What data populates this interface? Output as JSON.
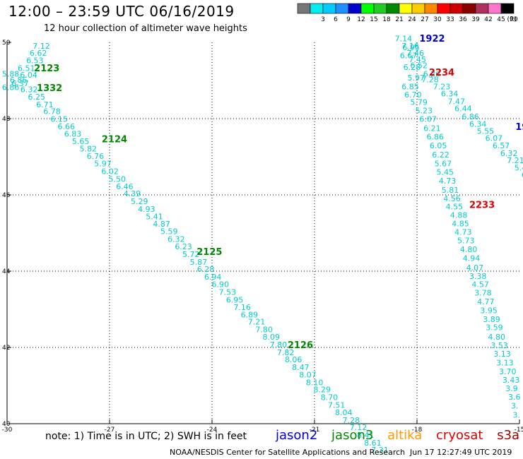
{
  "title": "12:00  – 23:59 UTC 06/16/2019",
  "subtitle": "12 hour collection of altimeter wave heights",
  "colorbar": {
    "unit": "(ft)",
    "bins": [
      {
        "label": "",
        "color": "#777777"
      },
      {
        "label": "3",
        "color": "#00eeee"
      },
      {
        "label": "6",
        "color": "#00ccff"
      },
      {
        "label": "9",
        "color": "#1e90ff"
      },
      {
        "label": "12",
        "color": "#0000cc"
      },
      {
        "label": "15",
        "color": "#00ff00"
      },
      {
        "label": "18",
        "color": "#22cc22"
      },
      {
        "label": "21",
        "color": "#008800"
      },
      {
        "label": "24",
        "color": "#ffff00"
      },
      {
        "label": "27",
        "color": "#ffcc00"
      },
      {
        "label": "30",
        "color": "#ff8800"
      },
      {
        "label": "33",
        "color": "#ff0000"
      },
      {
        "label": "36",
        "color": "#cc0000"
      },
      {
        "label": "39",
        "color": "#880000"
      },
      {
        "label": "42",
        "color": "#b03060"
      },
      {
        "label": "45",
        "color": "#ff77cc"
      },
      {
        "label": "70",
        "color": "#000000"
      }
    ]
  },
  "chart_data": {
    "type": "scatter",
    "xlim": [
      -30,
      -15
    ],
    "ylim": [
      40,
      50
    ],
    "x_ticks": [
      "-30",
      "-27",
      "-24",
      "-21",
      "-18",
      "-15"
    ],
    "y_ticks": [
      "40",
      "42",
      "44",
      "46",
      "48",
      "50"
    ],
    "grid": true,
    "value_color": "#00cccc",
    "tracks": [
      {
        "points": [
          {
            "lon": -29.25,
            "lat": 49.83,
            "v": "7.12"
          },
          {
            "lon": -29.34,
            "lat": 49.65,
            "v": "6.62"
          },
          {
            "lon": -29.44,
            "lat": 49.45,
            "v": "6.53"
          },
          {
            "lon": -29.69,
            "lat": 49.25,
            "v": "6.51"
          },
          {
            "lon": -30.15,
            "lat": 49.1,
            "v": "5.88"
          },
          {
            "lon": -29.62,
            "lat": 49.07,
            "v": "6.04"
          },
          {
            "lon": -29.92,
            "lat": 48.94,
            "v": "6.86"
          },
          {
            "lon": -29.87,
            "lat": 48.85,
            "v": "6.37"
          },
          {
            "lon": -30.15,
            "lat": 48.75,
            "v": "6.86"
          },
          {
            "lon": -29.61,
            "lat": 48.69,
            "v": "6.32"
          },
          {
            "lon": -29.39,
            "lat": 48.5,
            "v": "6.25"
          },
          {
            "lon": -29.15,
            "lat": 48.3,
            "v": "6.71"
          },
          {
            "lon": -28.94,
            "lat": 48.12,
            "v": "6.78"
          },
          {
            "lon": -28.73,
            "lat": 47.92,
            "v": "6.15"
          },
          {
            "lon": -28.52,
            "lat": 47.72,
            "v": "6.66"
          },
          {
            "lon": -28.33,
            "lat": 47.53,
            "v": "6.83"
          },
          {
            "lon": -28.1,
            "lat": 47.33,
            "v": "5.65"
          },
          {
            "lon": -27.88,
            "lat": 47.14,
            "v": "5.82"
          },
          {
            "lon": -27.67,
            "lat": 46.94,
            "v": "6.76"
          },
          {
            "lon": -27.45,
            "lat": 46.75,
            "v": "5.97"
          },
          {
            "lon": -27.24,
            "lat": 46.55,
            "v": "6.02"
          },
          {
            "lon": -27.03,
            "lat": 46.34,
            "v": "5.50"
          },
          {
            "lon": -26.81,
            "lat": 46.15,
            "v": "6.46"
          },
          {
            "lon": -26.59,
            "lat": 45.96,
            "v": "4.39"
          },
          {
            "lon": -26.38,
            "lat": 45.76,
            "v": "5.29"
          },
          {
            "lon": -26.17,
            "lat": 45.56,
            "v": "4.93"
          },
          {
            "lon": -25.94,
            "lat": 45.36,
            "v": "5.41"
          },
          {
            "lon": -25.73,
            "lat": 45.17,
            "v": "4.87"
          },
          {
            "lon": -25.51,
            "lat": 44.97,
            "v": "5.59"
          },
          {
            "lon": -25.3,
            "lat": 44.77,
            "v": "6.32"
          },
          {
            "lon": -25.09,
            "lat": 44.57,
            "v": "6.23"
          },
          {
            "lon": -24.87,
            "lat": 44.37,
            "v": "5.72"
          },
          {
            "lon": -24.65,
            "lat": 44.17,
            "v": "5.87"
          },
          {
            "lon": -24.44,
            "lat": 43.98,
            "v": "6.28"
          },
          {
            "lon": -24.23,
            "lat": 43.78,
            "v": "6.94"
          },
          {
            "lon": -24.01,
            "lat": 43.58,
            "v": "6.90"
          },
          {
            "lon": -23.8,
            "lat": 43.38,
            "v": "7.53"
          },
          {
            "lon": -23.59,
            "lat": 43.18,
            "v": "6.95"
          },
          {
            "lon": -23.37,
            "lat": 42.98,
            "v": "7.16"
          },
          {
            "lon": -23.16,
            "lat": 42.79,
            "v": "6.89"
          },
          {
            "lon": -22.95,
            "lat": 42.6,
            "v": "7.21"
          },
          {
            "lon": -22.73,
            "lat": 42.4,
            "v": "7.80"
          },
          {
            "lon": -22.52,
            "lat": 42.2,
            "v": "8.09"
          },
          {
            "lon": -22.31,
            "lat": 42.0,
            "v": "7.80"
          },
          {
            "lon": -22.1,
            "lat": 41.8,
            "v": "7.82"
          },
          {
            "lon": -21.87,
            "lat": 41.61,
            "v": "8.06"
          },
          {
            "lon": -21.66,
            "lat": 41.41,
            "v": "8.47"
          },
          {
            "lon": -21.45,
            "lat": 41.21,
            "v": "8.07"
          },
          {
            "lon": -21.25,
            "lat": 41.01,
            "v": "8.10"
          },
          {
            "lon": -21.03,
            "lat": 40.82,
            "v": "8.29"
          },
          {
            "lon": -20.82,
            "lat": 40.62,
            "v": "8.70"
          },
          {
            "lon": -20.61,
            "lat": 40.42,
            "v": "7.51"
          },
          {
            "lon": -20.4,
            "lat": 40.22,
            "v": "8.04"
          },
          {
            "lon": -20.18,
            "lat": 40.02,
            "v": "7.28"
          },
          {
            "lon": -19.97,
            "lat": 39.83,
            "v": "7.12"
          },
          {
            "lon": -19.76,
            "lat": 39.63,
            "v": "8.41"
          },
          {
            "lon": -19.55,
            "lat": 39.43,
            "v": "8.61"
          },
          {
            "lon": -19.34,
            "lat": 39.24,
            "v": "7.31"
          }
        ],
        "labels": [
          {
            "lon": -29.21,
            "lat": 49.24,
            "text": "2123",
            "sat": "jason3"
          },
          {
            "lon": -29.13,
            "lat": 48.72,
            "text": "1332",
            "sat": "jason3"
          },
          {
            "lon": -27.23,
            "lat": 47.38,
            "text": "2124",
            "sat": "jason3"
          },
          {
            "lon": -24.45,
            "lat": 44.43,
            "text": "2125",
            "sat": "jason3"
          },
          {
            "lon": -21.79,
            "lat": 41.98,
            "text": "2126",
            "sat": "jason3"
          }
        ]
      },
      {
        "points": [
          {
            "lon": -18.65,
            "lat": 50.03,
            "v": "7.14"
          },
          {
            "lon": -18.45,
            "lat": 49.83,
            "v": "7.16"
          },
          {
            "lon": -18.43,
            "lat": 49.8,
            "v": "6.95"
          },
          {
            "lon": -18.3,
            "lat": 49.65,
            "v": "7.46"
          },
          {
            "lon": -18.5,
            "lat": 49.58,
            "v": "6.67"
          },
          {
            "lon": -18.24,
            "lat": 49.48,
            "v": "7.45"
          },
          {
            "lon": -18.2,
            "lat": 49.32,
            "v": "6.52"
          },
          {
            "lon": -18.4,
            "lat": 49.28,
            "v": "6.28"
          },
          {
            "lon": -18.28,
            "lat": 49.0,
            "v": "5.97"
          },
          {
            "lon": -17.82,
            "lat": 49.1,
            "v": "6.26"
          },
          {
            "lon": -17.87,
            "lat": 48.95,
            "v": "7.28"
          },
          {
            "lon": -18.45,
            "lat": 48.77,
            "v": "6.85"
          },
          {
            "lon": -17.53,
            "lat": 48.77,
            "v": "7.23"
          },
          {
            "lon": -18.37,
            "lat": 48.56,
            "v": "6.70"
          },
          {
            "lon": -17.3,
            "lat": 48.58,
            "v": "6.34"
          },
          {
            "lon": -18.2,
            "lat": 48.36,
            "v": "5.79"
          },
          {
            "lon": -17.1,
            "lat": 48.38,
            "v": "7.47"
          },
          {
            "lon": -16.9,
            "lat": 48.19,
            "v": "6.44"
          },
          {
            "lon": -18.05,
            "lat": 48.14,
            "v": "5.23"
          },
          {
            "lon": -16.69,
            "lat": 47.98,
            "v": "6.86"
          },
          {
            "lon": -17.93,
            "lat": 47.92,
            "v": "6.07"
          },
          {
            "lon": -16.47,
            "lat": 47.79,
            "v": "6.34"
          },
          {
            "lon": -16.25,
            "lat": 47.6,
            "v": "5.55"
          },
          {
            "lon": -17.81,
            "lat": 47.68,
            "v": "6.21"
          },
          {
            "lon": -16.0,
            "lat": 47.42,
            "v": "6.07"
          },
          {
            "lon": -17.72,
            "lat": 47.45,
            "v": "6.86"
          },
          {
            "lon": -15.79,
            "lat": 47.22,
            "v": "6.57"
          },
          {
            "lon": -17.63,
            "lat": 47.22,
            "v": "6.05"
          },
          {
            "lon": -15.56,
            "lat": 47.02,
            "v": "6.32"
          },
          {
            "lon": -17.56,
            "lat": 46.98,
            "v": "6.22"
          },
          {
            "lon": -15.37,
            "lat": 46.83,
            "v": "7.21"
          },
          {
            "lon": -17.49,
            "lat": 46.75,
            "v": "5.67"
          },
          {
            "lon": -15.15,
            "lat": 46.64,
            "v": "5.46"
          },
          {
            "lon": -17.43,
            "lat": 46.53,
            "v": "5.45"
          },
          {
            "lon": -14.94,
            "lat": 46.45,
            "v": "6.24"
          },
          {
            "lon": -17.36,
            "lat": 46.3,
            "v": "4.73"
          },
          {
            "lon": -14.72,
            "lat": 46.26,
            "v": "6.69"
          },
          {
            "lon": -14.68,
            "lat": 46.06,
            "v": "6.43"
          },
          {
            "lon": -17.28,
            "lat": 46.06,
            "v": "5.81"
          },
          {
            "lon": -17.23,
            "lat": 45.83,
            "v": "4.56"
          },
          {
            "lon": -17.16,
            "lat": 45.62,
            "v": "4.55"
          },
          {
            "lon": -17.03,
            "lat": 45.4,
            "v": "4.88"
          },
          {
            "lon": -16.98,
            "lat": 45.18,
            "v": "4.85"
          },
          {
            "lon": -16.9,
            "lat": 44.95,
            "v": "4.73"
          },
          {
            "lon": -16.82,
            "lat": 44.73,
            "v": "5.73"
          },
          {
            "lon": -16.74,
            "lat": 44.5,
            "v": "4.80"
          },
          {
            "lon": -16.66,
            "lat": 44.27,
            "v": "4.94"
          },
          {
            "lon": -16.56,
            "lat": 44.02,
            "v": "4.07"
          },
          {
            "lon": -16.47,
            "lat": 43.8,
            "v": "3.38"
          },
          {
            "lon": -16.4,
            "lat": 43.58,
            "v": "4.57"
          },
          {
            "lon": -16.32,
            "lat": 43.36,
            "v": "3.78"
          },
          {
            "lon": -16.24,
            "lat": 43.13,
            "v": "4.77"
          },
          {
            "lon": -16.15,
            "lat": 42.9,
            "v": "3.95"
          },
          {
            "lon": -16.07,
            "lat": 42.67,
            "v": "3.89"
          },
          {
            "lon": -15.99,
            "lat": 42.45,
            "v": "3.59"
          },
          {
            "lon": -15.92,
            "lat": 42.2,
            "v": "4.80"
          },
          {
            "lon": -15.84,
            "lat": 41.98,
            "v": "3.53"
          },
          {
            "lon": -15.76,
            "lat": 41.76,
            "v": "3.13"
          },
          {
            "lon": -15.68,
            "lat": 41.53,
            "v": "3.13"
          },
          {
            "lon": -15.6,
            "lat": 41.3,
            "v": "3.70"
          },
          {
            "lon": -15.5,
            "lat": 41.07,
            "v": "3.43"
          },
          {
            "lon": -15.41,
            "lat": 40.85,
            "v": "3.9"
          },
          {
            "lon": -15.33,
            "lat": 40.63,
            "v": "3.6"
          },
          {
            "lon": -15.25,
            "lat": 40.4,
            "v": "3."
          },
          {
            "lon": -15.2,
            "lat": 40.16,
            "v": "3."
          }
        ],
        "labels": [
          {
            "lon": -17.93,
            "lat": 50.02,
            "text": "1922",
            "sat": "jason2"
          },
          {
            "lon": -17.65,
            "lat": 49.13,
            "text": "2234",
            "sat": "cryosat"
          },
          {
            "lon": -15.12,
            "lat": 47.7,
            "text": "1923",
            "sat": "jason2"
          },
          {
            "lon": -16.47,
            "lat": 45.66,
            "text": "2233",
            "sat": "cryosat"
          },
          {
            "lon": -14.9,
            "lat": 42.2,
            "text": "2",
            "sat": "cryosat"
          }
        ]
      }
    ]
  },
  "footer": {
    "note": "note:  1) Time is in UTC;  2) SWH is in feet",
    "credit": "NOAA/NESDIS Center for Satellite Applications and Research",
    "timestamp": "Jun 17 12:27:49 UTC 2019"
  },
  "satellites": [
    {
      "key": "jason2",
      "name": "jason2",
      "color": "#0000dd"
    },
    {
      "key": "jason3",
      "name": "jason3",
      "color": "#008800"
    },
    {
      "key": "altika",
      "name": "altika",
      "color": "#ff9900"
    },
    {
      "key": "cryosat",
      "name": "cryosat",
      "color": "#dd0000"
    },
    {
      "key": "s3a",
      "name": "s3a",
      "color": "#990000"
    }
  ]
}
